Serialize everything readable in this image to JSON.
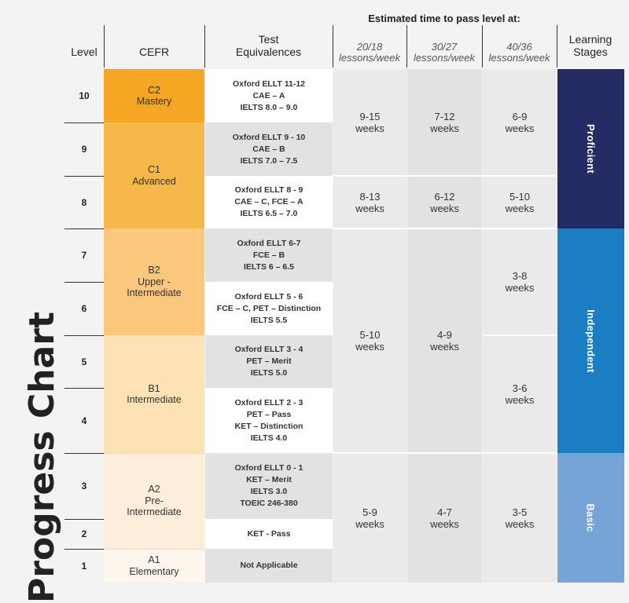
{
  "title": "Progress Chart",
  "headers": {
    "estimated_title": "Estimated time to pass level at:",
    "level": "Level",
    "cefr": "CEFR",
    "test_line1": "Test",
    "test_line2": "Equivalences",
    "rate1_top": "20/18",
    "rate1_bottom": "lessons/week",
    "rate2_top": "30/27",
    "rate2_bottom": "lessons/week",
    "rate3_top": "40/36",
    "rate3_bottom": "lessons/week",
    "stages_line1": "Learning",
    "stages_line2": "Stages"
  },
  "levels": [
    "10",
    "9",
    "8",
    "7",
    "6",
    "5",
    "4",
    "3",
    "2",
    "1"
  ],
  "cefr": [
    {
      "code": "C2",
      "name": "Mastery",
      "color": "#f5a623"
    },
    {
      "code": "C1",
      "name": "Advanced",
      "color": "#f7b84a"
    },
    {
      "code": "B2",
      "name": "Upper -",
      "name2": "Intermediate",
      "color": "#fbc77d"
    },
    {
      "code": "B1",
      "name": "Intermediate",
      "color": "#fde2b6"
    },
    {
      "code": "A2",
      "name": "Pre-",
      "name2": "Intermediate",
      "color": "#fdeedb"
    },
    {
      "code": "A1",
      "name": "Elementary",
      "color": "#fef6ec"
    }
  ],
  "tests": [
    {
      "lines": [
        "Oxford ELLT 11-12",
        "CAE – A",
        "IELTS 8.0 – 9.0"
      ]
    },
    {
      "lines": [
        "Oxford ELLT 9 - 10",
        "CAE – B",
        "IELTS 7.0 – 7.5"
      ]
    },
    {
      "lines": [
        "Oxford ELLT 8 - 9",
        "CAE – C, FCE – A",
        "IELTS 6.5 – 7.0"
      ]
    },
    {
      "lines": [
        "Oxford ELLT 6-7",
        "FCE – B",
        "IELTS 6 – 6.5"
      ]
    },
    {
      "lines": [
        "Oxford ELLT 5 - 6",
        "FCE – C, PET – Distinction",
        "IELTS 5.5"
      ]
    },
    {
      "lines": [
        "Oxford ELLT 3 - 4",
        "PET – Merit",
        "IELTS 5.0"
      ]
    },
    {
      "lines": [
        "Oxford ELLT 2 - 3",
        "PET – Pass",
        "KET – Distinction",
        "IELTS 4.0"
      ]
    },
    {
      "lines": [
        "Oxford ELLT 0 - 1",
        "KET – Merit",
        "IELTS 3.0",
        "TOEIC 246-380"
      ]
    },
    {
      "lines": [
        "KET - Pass"
      ]
    },
    {
      "lines": [
        "Not Applicable"
      ]
    }
  ],
  "times": {
    "r20": [
      {
        "value": "9-15",
        "unit": "weeks"
      },
      {
        "value": "8-13",
        "unit": "weeks"
      },
      {
        "value": "5-10",
        "unit": "weeks"
      },
      {
        "value": "5-9",
        "unit": "weeks"
      }
    ],
    "r30": [
      {
        "value": "7-12",
        "unit": "weeks"
      },
      {
        "value": "6-12",
        "unit": "weeks"
      },
      {
        "value": "4-9",
        "unit": "weeks"
      },
      {
        "value": "4-7",
        "unit": "weeks"
      }
    ],
    "r40": [
      {
        "value": "6-9",
        "unit": "weeks"
      },
      {
        "value": "5-10",
        "unit": "weeks"
      },
      {
        "value": "3-8",
        "unit": "weeks"
      },
      {
        "value": "3-6",
        "unit": "weeks"
      },
      {
        "value": "3-5",
        "unit": "weeks"
      }
    ]
  },
  "stages": [
    {
      "name": "Proficient",
      "color": "#252c63"
    },
    {
      "name": "Independent",
      "color": "#1c7ec2"
    },
    {
      "name": "Basic",
      "color": "#77a4d6"
    }
  ],
  "colors": {
    "test_white": "#ffffff",
    "test_gray": "#e2e2e2",
    "time_col1": "#eaeaea",
    "time_col2": "#e2e2e2",
    "time_col3": "#eaeaea"
  }
}
